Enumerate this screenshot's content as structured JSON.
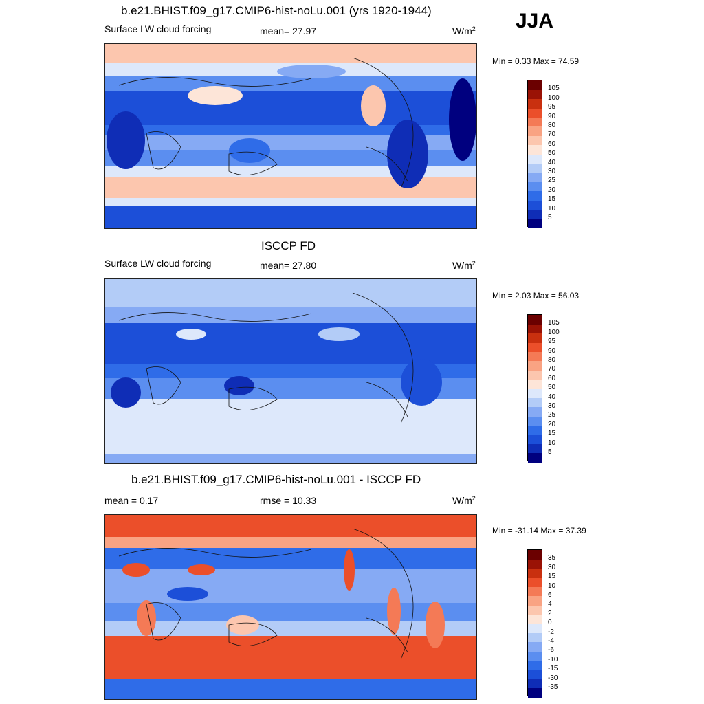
{
  "season": "JJA",
  "panels": [
    {
      "title": "b.e21.BHIST.f09_g17.CMIP6-hist-noLu.001 (yrs 1920-1944)",
      "left_label": "Surface LW cloud forcing",
      "center_label": "mean=  27.97",
      "units_base": "W/m",
      "units_exp": "2",
      "minmax": "Min =   0.33 Max =  74.59",
      "colorbar": {
        "labels": [
          "5",
          "10",
          "15",
          "20",
          "25",
          "30",
          "40",
          "50",
          "60",
          "70",
          "80",
          "90",
          "95",
          "100",
          "105"
        ],
        "colors": [
          "#00007f",
          "#0f2db6",
          "#1c4fd8",
          "#2f6ce8",
          "#5b8ef0",
          "#86aaf4",
          "#b3ccf7",
          "#dde8fb",
          "#fde5d8",
          "#fcc6ae",
          "#f9a383",
          "#f47a56",
          "#eb4f2a",
          "#c9300f",
          "#9a1205",
          "#6b0000"
        ]
      }
    },
    {
      "title": "ISCCP FD",
      "left_label": "Surface LW cloud forcing",
      "center_label": "mean=  27.80",
      "units_base": "W/m",
      "units_exp": "2",
      "minmax": "Min =   2.03 Max =  56.03",
      "colorbar": {
        "labels": [
          "5",
          "10",
          "15",
          "20",
          "25",
          "30",
          "40",
          "50",
          "60",
          "70",
          "80",
          "90",
          "95",
          "100",
          "105"
        ],
        "colors": [
          "#00007f",
          "#0f2db6",
          "#1c4fd8",
          "#2f6ce8",
          "#5b8ef0",
          "#86aaf4",
          "#b3ccf7",
          "#dde8fb",
          "#fde5d8",
          "#fcc6ae",
          "#f9a383",
          "#f47a56",
          "#eb4f2a",
          "#c9300f",
          "#9a1205",
          "#6b0000"
        ]
      }
    },
    {
      "title": "b.e21.BHIST.f09_g17.CMIP6-hist-noLu.001 - ISCCP FD",
      "left_label": "mean =   0.17",
      "center_label": "rmse =  10.33",
      "units_base": "W/m",
      "units_exp": "2",
      "minmax": "Min = -31.14 Max =  37.39",
      "colorbar": {
        "labels": [
          "-35",
          "-30",
          "-15",
          "-10",
          "-6",
          "-4",
          "-2",
          "0",
          "2",
          "4",
          "6",
          "10",
          "15",
          "30",
          "35"
        ],
        "colors": [
          "#00007f",
          "#0f2db6",
          "#1c4fd8",
          "#2f6ce8",
          "#5b8ef0",
          "#86aaf4",
          "#b3ccf7",
          "#dde8fb",
          "#fde5d8",
          "#fcc6ae",
          "#f9a383",
          "#f47a56",
          "#eb4f2a",
          "#c9300f",
          "#9a1205",
          "#6b0000"
        ]
      }
    }
  ]
}
